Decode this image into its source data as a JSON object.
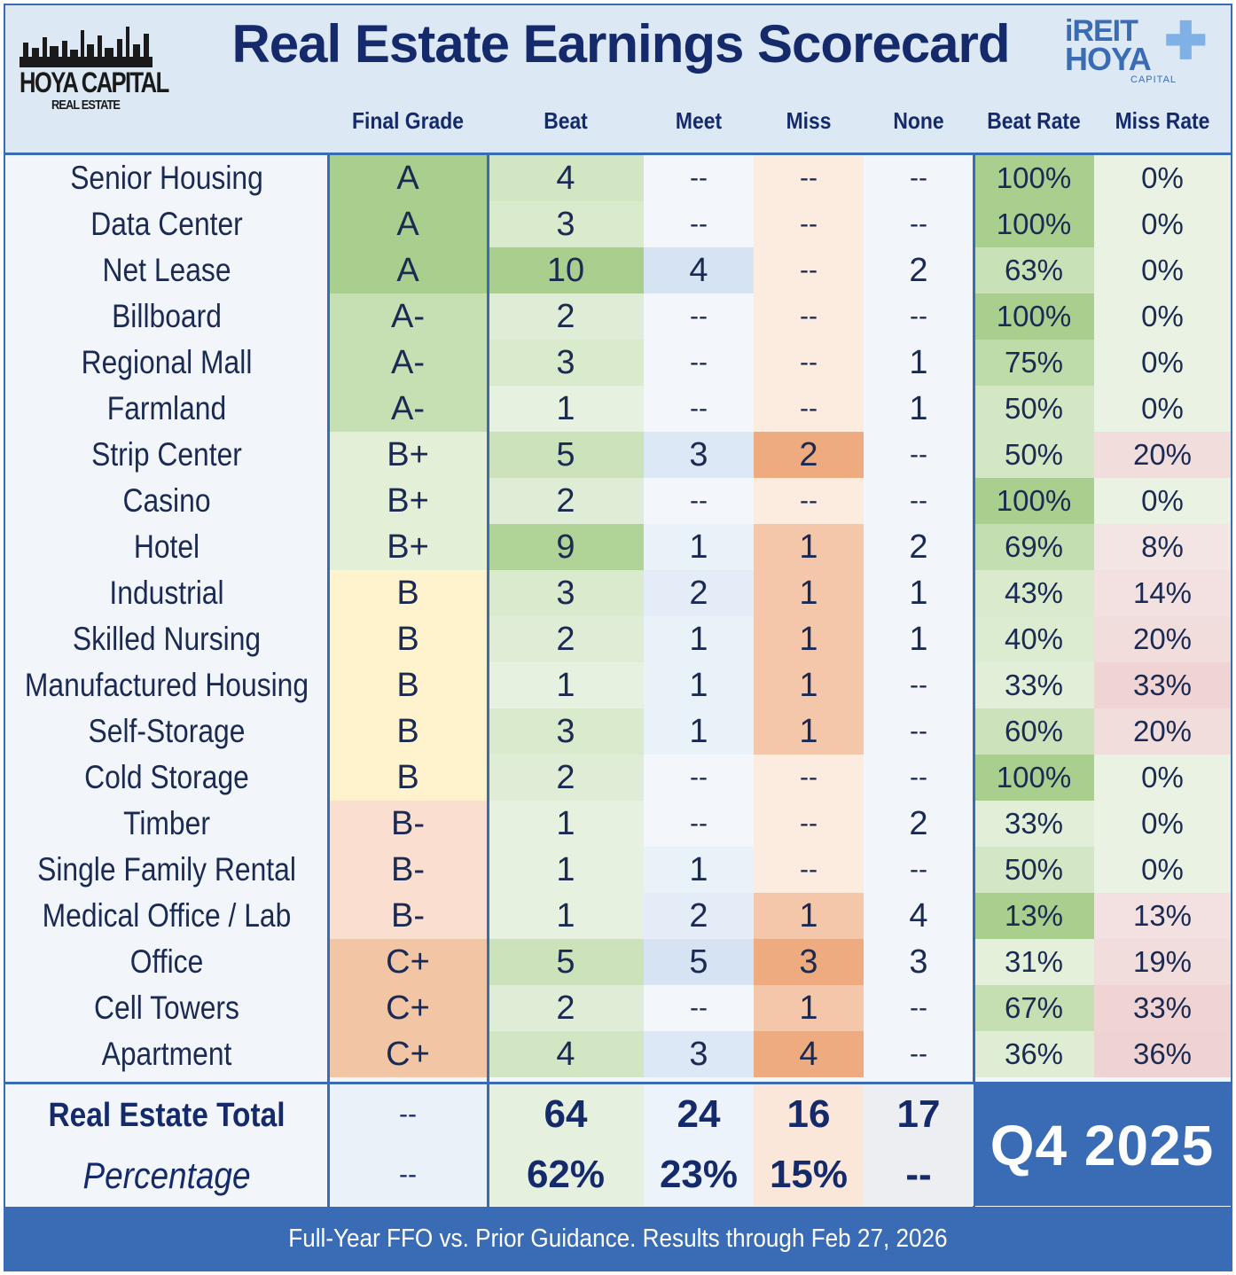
{
  "title": "Real Estate Earnings Scorecard",
  "logo_left": {
    "brand": "HOYA CAPITAL",
    "sub": "REAL ESTATE"
  },
  "logo_right": {
    "line1": "iREIT",
    "line2": "HOYA",
    "line3": "CAPITAL"
  },
  "columns": [
    "Final Grade",
    "Beat",
    "Meet",
    "Miss",
    "None",
    "Beat Rate",
    "Miss Rate"
  ],
  "chart_data": {
    "type": "table",
    "title": "Real Estate Earnings Scorecard",
    "columns": [
      "Final Grade",
      "Beat",
      "Meet",
      "Miss",
      "None",
      "Beat Rate",
      "Miss Rate"
    ],
    "rows": [
      {
        "sector": "Senior Housing",
        "grade": "A",
        "beat": "4",
        "meet": "--",
        "miss": "--",
        "none": "--",
        "beat_rate": "100%",
        "miss_rate": "0%"
      },
      {
        "sector": "Data Center",
        "grade": "A",
        "beat": "3",
        "meet": "--",
        "miss": "--",
        "none": "--",
        "beat_rate": "100%",
        "miss_rate": "0%"
      },
      {
        "sector": "Net Lease",
        "grade": "A",
        "beat": "10",
        "meet": "4",
        "miss": "--",
        "none": "2",
        "beat_rate": "63%",
        "miss_rate": "0%"
      },
      {
        "sector": "Billboard",
        "grade": "A-",
        "beat": "2",
        "meet": "--",
        "miss": "--",
        "none": "--",
        "beat_rate": "100%",
        "miss_rate": "0%"
      },
      {
        "sector": "Regional Mall",
        "grade": "A-",
        "beat": "3",
        "meet": "--",
        "miss": "--",
        "none": "1",
        "beat_rate": "75%",
        "miss_rate": "0%"
      },
      {
        "sector": "Farmland",
        "grade": "A-",
        "beat": "1",
        "meet": "--",
        "miss": "--",
        "none": "1",
        "beat_rate": "50%",
        "miss_rate": "0%"
      },
      {
        "sector": "Strip Center",
        "grade": "B+",
        "beat": "5",
        "meet": "3",
        "miss": "2",
        "none": "--",
        "beat_rate": "50%",
        "miss_rate": "20%"
      },
      {
        "sector": "Casino",
        "grade": "B+",
        "beat": "2",
        "meet": "--",
        "miss": "--",
        "none": "--",
        "beat_rate": "100%",
        "miss_rate": "0%"
      },
      {
        "sector": "Hotel",
        "grade": "B+",
        "beat": "9",
        "meet": "1",
        "miss": "1",
        "none": "2",
        "beat_rate": "69%",
        "miss_rate": "8%"
      },
      {
        "sector": "Industrial",
        "grade": "B",
        "beat": "3",
        "meet": "2",
        "miss": "1",
        "none": "1",
        "beat_rate": "43%",
        "miss_rate": "14%"
      },
      {
        "sector": "Skilled Nursing",
        "grade": "B",
        "beat": "2",
        "meet": "1",
        "miss": "1",
        "none": "1",
        "beat_rate": "40%",
        "miss_rate": "20%"
      },
      {
        "sector": "Manufactured Housing",
        "grade": "B",
        "beat": "1",
        "meet": "1",
        "miss": "1",
        "none": "--",
        "beat_rate": "33%",
        "miss_rate": "33%"
      },
      {
        "sector": "Self-Storage",
        "grade": "B",
        "beat": "3",
        "meet": "1",
        "miss": "1",
        "none": "--",
        "beat_rate": "60%",
        "miss_rate": "20%"
      },
      {
        "sector": "Cold Storage",
        "grade": "B",
        "beat": "2",
        "meet": "--",
        "miss": "--",
        "none": "--",
        "beat_rate": "100%",
        "miss_rate": "0%"
      },
      {
        "sector": "Timber",
        "grade": "B-",
        "beat": "1",
        "meet": "--",
        "miss": "--",
        "none": "2",
        "beat_rate": "33%",
        "miss_rate": "0%"
      },
      {
        "sector": "Single Family Rental",
        "grade": "B-",
        "beat": "1",
        "meet": "1",
        "miss": "--",
        "none": "--",
        "beat_rate": "50%",
        "miss_rate": "0%"
      },
      {
        "sector": "Medical Office / Lab",
        "grade": "B-",
        "beat": "1",
        "meet": "2",
        "miss": "1",
        "none": "4",
        "beat_rate": "13%",
        "miss_rate": "13%"
      },
      {
        "sector": "Office",
        "grade": "C+",
        "beat": "5",
        "meet": "5",
        "miss": "3",
        "none": "3",
        "beat_rate": "31%",
        "miss_rate": "19%"
      },
      {
        "sector": "Cell Towers",
        "grade": "C+",
        "beat": "2",
        "meet": "--",
        "miss": "1",
        "none": "--",
        "beat_rate": "67%",
        "miss_rate": "33%"
      },
      {
        "sector": "Apartment",
        "grade": "C+",
        "beat": "4",
        "meet": "3",
        "miss": "4",
        "none": "--",
        "beat_rate": "36%",
        "miss_rate": "36%"
      }
    ],
    "totals": {
      "label": "Real Estate Total",
      "grade": "--",
      "beat": "64",
      "meet": "24",
      "miss": "16",
      "none": "17"
    },
    "percentages": {
      "label": "Percentage",
      "grade": "--",
      "beat": "62%",
      "meet": "23%",
      "miss": "15%",
      "none": "--"
    }
  },
  "quarter": "Q4 2025",
  "footer": "Full-Year FFO vs. Prior Guidance. Results through Feb 27, 2026",
  "colors": {
    "accent": "#3a6cb5",
    "title": "#142a6b",
    "green_strong": "#a9cf8e",
    "orange_strong": "#eeab80",
    "yellow": "#fef3cd"
  }
}
